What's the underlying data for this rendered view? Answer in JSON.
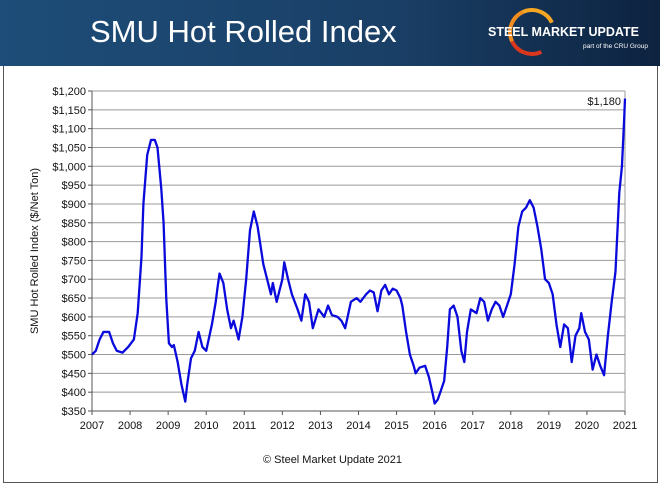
{
  "header": {
    "title": "SMU Hot Rolled Index",
    "logo_text": "STEEL MARKET UPDATE",
    "logo_sub": "part of the CRU Group"
  },
  "footer": "© Steel Market Update 2021",
  "chart_data": {
    "type": "line",
    "title": "",
    "xlabel": "",
    "ylabel": "SMU Hot Rolled Index ($/Net Ton)",
    "xlim": [
      2007,
      2021
    ],
    "ylim": [
      350,
      1200
    ],
    "x_ticks": [
      "2007",
      "2008",
      "2009",
      "2010",
      "2011",
      "2012",
      "2013",
      "2014",
      "2015",
      "2016",
      "2017",
      "2018",
      "2019",
      "2020",
      "2021"
    ],
    "y_ticks": [
      "$350",
      "$400",
      "$450",
      "$500",
      "$550",
      "$600",
      "$650",
      "$700",
      "$750",
      "$800",
      "$850",
      "$900",
      "$950",
      "$1,000",
      "$1,050",
      "$1,100",
      "$1,150",
      "$1,200"
    ],
    "grid": "horizontal",
    "line_color": "#0a0adc",
    "annotation": "$1,180",
    "series": [
      {
        "x": [
          2007.0,
          2007.1,
          2007.2,
          2007.3,
          2007.45,
          2007.55,
          2007.65,
          2007.8,
          2007.95,
          2008.1,
          2008.2,
          2008.3,
          2008.35,
          2008.45,
          2008.55,
          2008.65,
          2008.72,
          2008.82,
          2008.88,
          2008.95,
          2009.02,
          2009.1,
          2009.15,
          2009.25,
          2009.35,
          2009.45,
          2009.5,
          2009.6,
          2009.7,
          2009.8,
          2009.9,
          2010.0,
          2010.15,
          2010.25,
          2010.3,
          2010.35,
          2010.45,
          2010.55,
          2010.65,
          2010.72,
          2010.8,
          2010.85,
          2010.95,
          2011.05,
          2011.15,
          2011.25,
          2011.35,
          2011.5,
          2011.6,
          2011.7,
          2011.75,
          2011.85,
          2012.0,
          2012.05,
          2012.15,
          2012.25,
          2012.4,
          2012.5,
          2012.6,
          2012.7,
          2012.8,
          2012.95,
          2013.1,
          2013.2,
          2013.3,
          2013.45,
          2013.55,
          2013.65,
          2013.8,
          2013.95,
          2014.05,
          2014.2,
          2014.3,
          2014.4,
          2014.5,
          2014.6,
          2014.7,
          2014.8,
          2014.9,
          2015.0,
          2015.1,
          2015.15,
          2015.25,
          2015.35,
          2015.45,
          2015.5,
          2015.6,
          2015.75,
          2015.85,
          2015.95,
          2016.0,
          2016.08,
          2016.15,
          2016.25,
          2016.33,
          2016.4,
          2016.5,
          2016.6,
          2016.7,
          2016.78,
          2016.85,
          2016.95,
          2017.1,
          2017.2,
          2017.3,
          2017.4,
          2017.5,
          2017.6,
          2017.7,
          2017.8,
          2017.9,
          2018.0,
          2018.1,
          2018.2,
          2018.3,
          2018.4,
          2018.5,
          2018.6,
          2018.7,
          2018.8,
          2018.9,
          2019.0,
          2019.1,
          2019.2,
          2019.3,
          2019.4,
          2019.5,
          2019.6,
          2019.7,
          2019.8,
          2019.85,
          2019.95,
          2020.05,
          2020.15,
          2020.25,
          2020.35,
          2020.45,
          2020.55,
          2020.65,
          2020.75,
          2020.85,
          2020.92,
          2020.98,
          2021.0
        ],
        "y": [
          500,
          510,
          540,
          560,
          560,
          530,
          510,
          505,
          520,
          540,
          610,
          760,
          900,
          1030,
          1070,
          1070,
          1050,
          940,
          850,
          650,
          530,
          520,
          525,
          480,
          420,
          375,
          420,
          490,
          510,
          560,
          520,
          510,
          580,
          640,
          680,
          715,
          690,
          620,
          570,
          590,
          560,
          540,
          600,
          700,
          830,
          880,
          840,
          740,
          700,
          660,
          690,
          640,
          700,
          745,
          700,
          660,
          620,
          590,
          660,
          640,
          570,
          620,
          600,
          630,
          605,
          600,
          590,
          570,
          640,
          650,
          640,
          660,
          670,
          665,
          615,
          670,
          685,
          660,
          675,
          670,
          650,
          630,
          560,
          500,
          470,
          450,
          465,
          470,
          440,
          395,
          370,
          380,
          400,
          430,
          520,
          620,
          630,
          600,
          510,
          480,
          560,
          620,
          610,
          650,
          640,
          590,
          620,
          640,
          630,
          600,
          630,
          660,
          740,
          840,
          880,
          890,
          910,
          890,
          840,
          780,
          700,
          690,
          660,
          580,
          520,
          580,
          570,
          480,
          550,
          570,
          610,
          560,
          540,
          460,
          500,
          470,
          445,
          550,
          640,
          720,
          930,
          1000,
          1130,
          1180
        ]
      }
    ]
  }
}
